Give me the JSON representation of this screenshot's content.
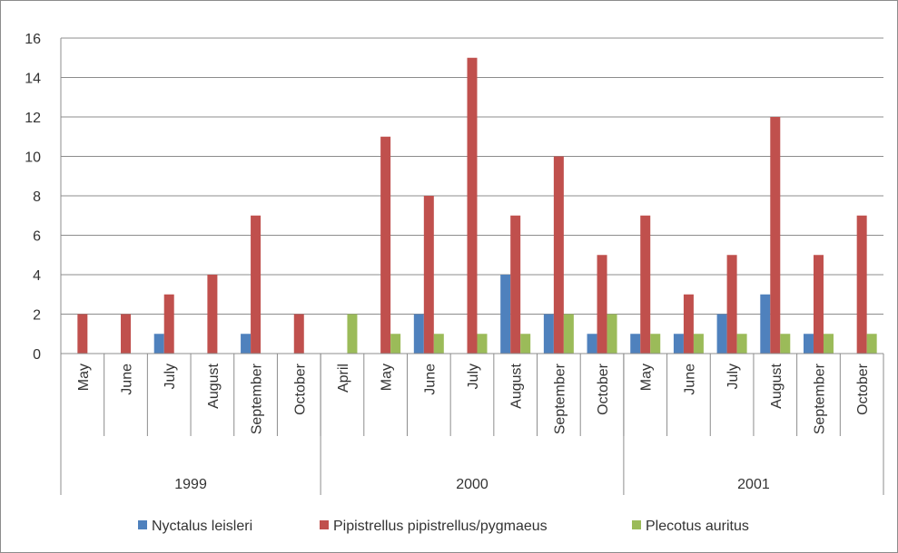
{
  "chart_data": {
    "type": "bar",
    "title": "",
    "xlabel": "",
    "ylabel": "",
    "ylim": [
      0,
      16
    ],
    "yticks": [
      0,
      2,
      4,
      6,
      8,
      10,
      12,
      14,
      16
    ],
    "grid": true,
    "legend_position": "bottom",
    "groups": [
      {
        "year": "1999",
        "months": [
          "May",
          "June",
          "July",
          "August",
          "September",
          "October"
        ]
      },
      {
        "year": "2000",
        "months": [
          "April",
          "May",
          "June",
          "July",
          "August",
          "September",
          "October"
        ]
      },
      {
        "year": "2001",
        "months": [
          "May",
          "June",
          "July",
          "August",
          "September",
          "October"
        ]
      }
    ],
    "series": [
      {
        "name": "Nyctalus leisleri",
        "color": "#4f81bd",
        "values": [
          0,
          0,
          1,
          0,
          1,
          0,
          0,
          0,
          2,
          0,
          4,
          2,
          1,
          1,
          1,
          2,
          3,
          1,
          0
        ]
      },
      {
        "name": "Pipistrellus pipistrellus/pygmaeus",
        "color": "#c0504d",
        "values": [
          2,
          2,
          3,
          4,
          7,
          2,
          0,
          11,
          8,
          15,
          7,
          10,
          5,
          7,
          3,
          5,
          12,
          5,
          7
        ]
      },
      {
        "name": "Plecotus auritus",
        "color": "#9bbb59",
        "values": [
          0,
          0,
          0,
          0,
          0,
          0,
          2,
          1,
          1,
          1,
          1,
          2,
          2,
          1,
          1,
          1,
          1,
          1,
          1
        ]
      }
    ]
  }
}
